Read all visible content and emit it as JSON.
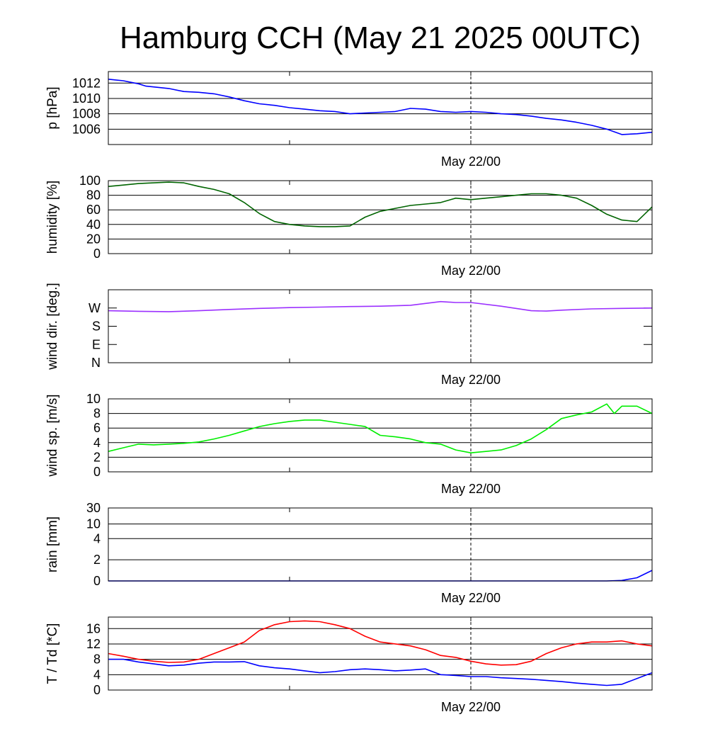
{
  "title": "Hamburg CCH (May 21 2025 00UTC)",
  "time_marker_label": "May 22/00",
  "chart_data": [
    {
      "type": "line",
      "ylabel": "p [hPa]",
      "ylim": [
        1004,
        1013.5
      ],
      "yticks": [
        1006,
        1008,
        1010,
        1012
      ],
      "ytick_labels": [
        "1006",
        "1008",
        "1010",
        "1012"
      ],
      "grid": true,
      "x_range_hours": [
        0,
        36
      ],
      "series": [
        {
          "color": "#0000ff",
          "x": [
            0,
            0.5,
            1,
            1.5,
            2,
            2.5,
            3,
            3.5,
            4,
            5,
            6,
            7,
            8,
            9,
            10,
            11,
            12,
            13,
            14,
            15,
            16,
            17,
            18,
            19,
            20,
            21,
            22,
            23,
            24,
            25,
            26,
            27,
            28,
            29,
            30,
            31,
            32,
            33,
            34,
            35,
            36
          ],
          "y": [
            1012.5,
            1012.4,
            1012.3,
            1012.1,
            1011.9,
            1011.6,
            1011.5,
            1011.4,
            1011.3,
            1010.9,
            1010.8,
            1010.6,
            1010.2,
            1009.7,
            1009.3,
            1009.1,
            1008.8,
            1008.6,
            1008.4,
            1008.3,
            1008.0,
            1008.1,
            1008.2,
            1008.3,
            1008.7,
            1008.6,
            1008.3,
            1008.2,
            1008.3,
            1008.2,
            1008.0,
            1007.9,
            1007.7,
            1007.4,
            1007.2,
            1006.9,
            1006.5,
            1006.0,
            1005.3,
            1005.4,
            1005.6
          ]
        }
      ]
    },
    {
      "type": "line",
      "ylabel": "humidity [%]",
      "ylim": [
        0,
        100
      ],
      "yticks": [
        0,
        20,
        40,
        60,
        80,
        100
      ],
      "ytick_labels": [
        "0",
        "20",
        "40",
        "60",
        "80",
        "100"
      ],
      "grid": true,
      "x_range_hours": [
        0,
        36
      ],
      "series": [
        {
          "color": "#006400",
          "x": [
            0,
            1,
            2,
            3,
            4,
            5,
            6,
            7,
            8,
            9,
            10,
            11,
            12,
            13,
            14,
            15,
            16,
            17,
            18,
            19,
            20,
            21,
            22,
            23,
            24,
            25,
            26,
            27,
            28,
            29,
            30,
            31,
            32,
            33,
            34,
            35,
            36
          ],
          "y": [
            92,
            94,
            96,
            97,
            98,
            97,
            92,
            88,
            82,
            70,
            55,
            44,
            40,
            38,
            37,
            37,
            38,
            50,
            58,
            62,
            66,
            68,
            70,
            76,
            74,
            76,
            78,
            80,
            82,
            82,
            80,
            76,
            66,
            54,
            46,
            44,
            64
          ]
        }
      ]
    },
    {
      "type": "line",
      "ylabel": "wind dir. [deg.]",
      "ylim": [
        0,
        400
      ],
      "yticks": [
        0,
        100,
        200,
        300
      ],
      "ytick_labels": [
        "N",
        "E",
        "S",
        "W"
      ],
      "grid": false,
      "x_range_hours": [
        0,
        36
      ],
      "series": [
        {
          "color": "#9b30ff",
          "x": [
            0,
            2,
            4,
            6,
            8,
            10,
            12,
            14,
            16,
            18,
            20,
            21,
            22,
            23,
            24,
            26,
            28,
            29,
            30,
            32,
            34,
            36
          ],
          "y": [
            285,
            282,
            280,
            285,
            292,
            298,
            302,
            305,
            308,
            310,
            315,
            325,
            335,
            330,
            330,
            310,
            285,
            283,
            288,
            295,
            298,
            300
          ]
        }
      ]
    },
    {
      "type": "line",
      "ylabel": "wind sp. [m/s]",
      "ylim": [
        0,
        10
      ],
      "yticks": [
        0,
        2,
        4,
        6,
        8,
        10
      ],
      "ytick_labels": [
        "0",
        "2",
        "4",
        "6",
        "8",
        "10"
      ],
      "grid": true,
      "x_range_hours": [
        0,
        36
      ],
      "series": [
        {
          "color": "#00ee00",
          "x": [
            0,
            1,
            2,
            3,
            4,
            5,
            6,
            7,
            8,
            9,
            10,
            11,
            12,
            13,
            14,
            15,
            16,
            17,
            18,
            19,
            20,
            21,
            22,
            23,
            24,
            25,
            26,
            27,
            28,
            29,
            30,
            31,
            32,
            33,
            33.5,
            34,
            35,
            36
          ],
          "y": [
            2.8,
            3.3,
            3.8,
            3.7,
            3.8,
            3.9,
            4.1,
            4.5,
            5.0,
            5.6,
            6.2,
            6.6,
            6.9,
            7.1,
            7.1,
            6.8,
            6.5,
            6.2,
            5.0,
            4.8,
            4.5,
            4.0,
            3.8,
            3.0,
            2.6,
            2.8,
            3.0,
            3.6,
            4.5,
            5.8,
            7.3,
            7.8,
            8.2,
            9.3,
            8.0,
            9.0,
            9.0,
            8.0
          ]
        }
      ]
    },
    {
      "type": "line",
      "ylabel": "rain [mm]",
      "ylim": [
        0,
        30
      ],
      "yticks": [
        0,
        2,
        4,
        10,
        30
      ],
      "ytick_labels": [
        "0",
        "2",
        "4",
        "10",
        "30"
      ],
      "grid": true,
      "x_range_hours": [
        0,
        36
      ],
      "series": [
        {
          "color": "#0000ff",
          "x": [
            0,
            33,
            34,
            35,
            36
          ],
          "y": [
            0,
            0,
            0.05,
            0.3,
            1.0
          ]
        }
      ]
    },
    {
      "type": "line",
      "ylabel": "T / Td [*C]",
      "ylim": [
        0,
        19
      ],
      "yticks": [
        0,
        4,
        8,
        12,
        16
      ],
      "ytick_labels": [
        "0",
        "4",
        "8",
        "12",
        "16"
      ],
      "grid": true,
      "x_range_hours": [
        0,
        36
      ],
      "series": [
        {
          "color": "#ff0000",
          "x": [
            0,
            1,
            2,
            3,
            4,
            5,
            6,
            7,
            8,
            9,
            10,
            11,
            12,
            13,
            14,
            15,
            16,
            17,
            18,
            19,
            20,
            21,
            22,
            23,
            24,
            25,
            26,
            27,
            28,
            29,
            30,
            31,
            32,
            33,
            34,
            35,
            36
          ],
          "y": [
            9.5,
            8.8,
            8.0,
            7.5,
            7.2,
            7.3,
            8.0,
            9.5,
            11.0,
            12.5,
            15.5,
            17.0,
            17.8,
            18.0,
            17.8,
            17.0,
            16.0,
            14.0,
            12.5,
            12.0,
            11.5,
            10.5,
            9.0,
            8.5,
            7.5,
            6.8,
            6.5,
            6.6,
            7.5,
            9.5,
            11.0,
            12.0,
            12.5,
            12.5,
            12.8,
            12.0,
            11.5
          ]
        },
        {
          "color": "#0000ff",
          "x": [
            0,
            1,
            2,
            3,
            4,
            5,
            6,
            7,
            8,
            9,
            10,
            11,
            12,
            13,
            14,
            15,
            16,
            17,
            18,
            19,
            20,
            21,
            22,
            23,
            24,
            25,
            26,
            27,
            28,
            29,
            30,
            31,
            32,
            33,
            34,
            35,
            36
          ],
          "y": [
            8.0,
            8.0,
            7.3,
            6.8,
            6.3,
            6.5,
            7.0,
            7.3,
            7.3,
            7.4,
            6.3,
            5.8,
            5.5,
            5.0,
            4.5,
            4.8,
            5.3,
            5.5,
            5.3,
            5.0,
            5.2,
            5.5,
            4.0,
            3.8,
            3.5,
            3.5,
            3.2,
            3.0,
            2.8,
            2.5,
            2.2,
            1.8,
            1.5,
            1.2,
            1.5,
            3.0,
            4.5
          ]
        }
      ]
    }
  ]
}
